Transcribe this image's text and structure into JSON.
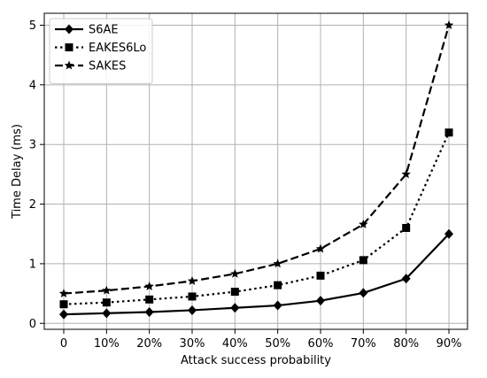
{
  "chart_data": {
    "type": "line",
    "categories": [
      "0",
      "10%",
      "20%",
      "30%",
      "40%",
      "50%",
      "60%",
      "70%",
      "80%",
      "90%"
    ],
    "xlabel": "Attack success probability",
    "ylabel": "Time Delay (ms)",
    "ylim": [
      -0.1,
      5.2
    ],
    "yticks": [
      0,
      1,
      2,
      3,
      4,
      5
    ],
    "grid": true,
    "legend_position": "top-left",
    "series": [
      {
        "name": "S6AE",
        "marker": "diamond",
        "line_style": "solid",
        "color": "#000000",
        "values": [
          0.15,
          0.17,
          0.19,
          0.22,
          0.26,
          0.3,
          0.38,
          0.51,
          0.75,
          1.5
        ]
      },
      {
        "name": "EAKES6Lo",
        "marker": "square",
        "line_style": "dotted",
        "color": "#000000",
        "values": [
          0.32,
          0.35,
          0.4,
          0.45,
          0.53,
          0.64,
          0.8,
          1.06,
          1.6,
          3.2
        ]
      },
      {
        "name": "SAKES",
        "marker": "star",
        "line_style": "dashed",
        "color": "#000000",
        "values": [
          0.5,
          0.55,
          0.62,
          0.71,
          0.83,
          1.0,
          1.25,
          1.66,
          2.5,
          5.0
        ]
      }
    ]
  }
}
